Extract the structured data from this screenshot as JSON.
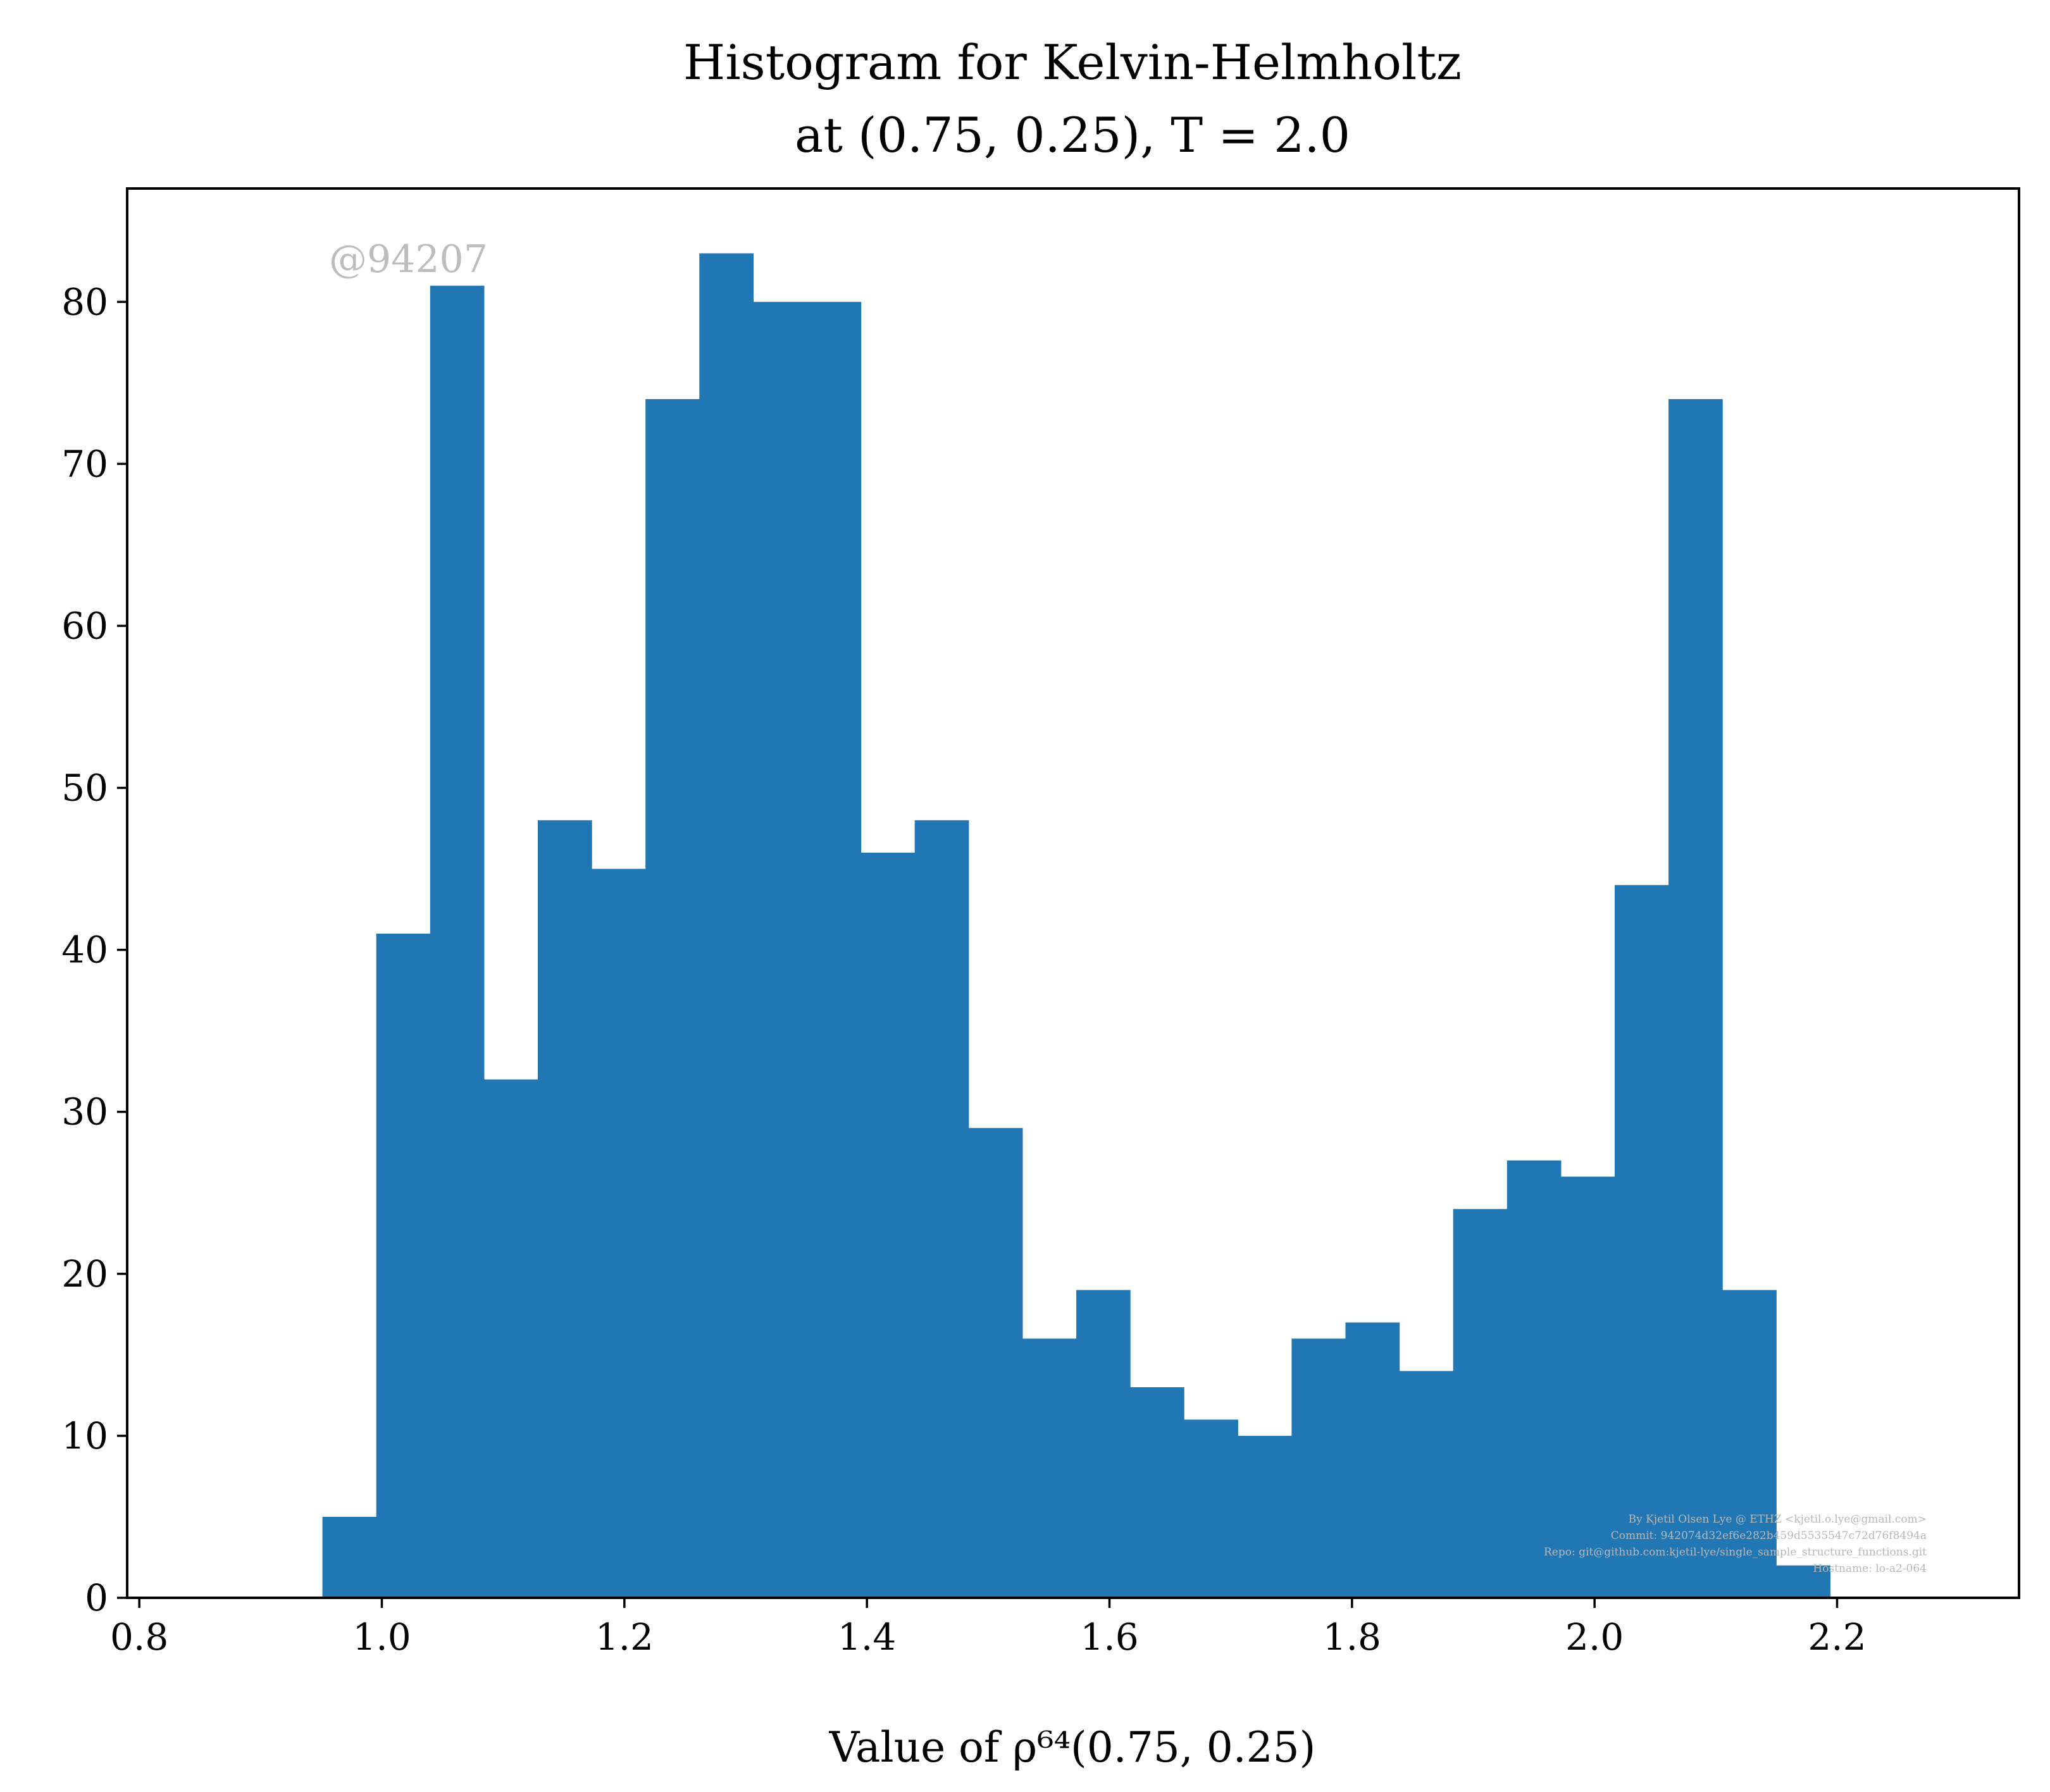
{
  "chart_data": {
    "type": "bar",
    "title_line1": "Histogram for Kelvin-Helmholtz",
    "title_line2": "at (0.75, 0.25), T = 2.0",
    "xlabel": "Value of ρ⁶⁴(0.75, 0.25)",
    "ylabel": "",
    "xlim": [
      0.79,
      2.35
    ],
    "ylim": [
      0,
      87
    ],
    "xticks": [
      "0.8",
      "1.0",
      "1.2",
      "1.4",
      "1.6",
      "1.8",
      "2.0",
      "2.2"
    ],
    "yticks": [
      "0",
      "10",
      "20",
      "30",
      "40",
      "50",
      "60",
      "70",
      "80"
    ],
    "bar_color": "#2077b4",
    "bins": {
      "edges": [
        0.951,
        0.9954,
        1.0398,
        1.0842,
        1.1286,
        1.173,
        1.2174,
        1.2618,
        1.3062,
        1.3506,
        1.395,
        1.4394,
        1.4838,
        1.5282,
        1.5726,
        1.617,
        1.6614,
        1.7058,
        1.7502,
        1.7946,
        1.839,
        1.8834,
        1.9278,
        1.9722,
        2.0166,
        2.061,
        2.1054,
        2.1498,
        2.1942
      ],
      "counts": [
        5,
        41,
        81,
        32,
        48,
        45,
        74,
        83,
        80,
        80,
        46,
        48,
        29,
        16,
        19,
        13,
        11,
        10,
        16,
        17,
        14,
        24,
        27,
        26,
        44,
        74,
        19,
        2
      ]
    },
    "grid": false,
    "legend": "none"
  },
  "watermark": "@94207",
  "credits": [
    "By Kjetil Olsen Lye @ ETHZ <kjetil.o.lye@gmail.com>",
    "Commit: 942074d32ef6e282b459d5535547c72d76f8494a",
    "Repo: git@github.com:kjetil-lye/single_sample_structure_functions.git",
    "Hostname: lo-a2-064"
  ]
}
